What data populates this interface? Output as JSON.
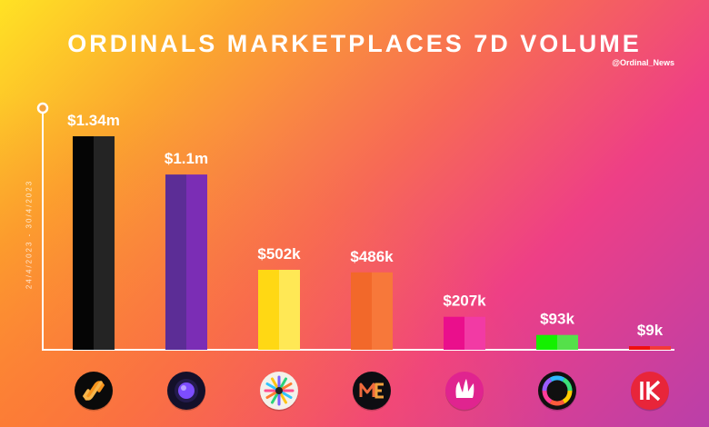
{
  "title": "ORDINALS MARKETPLACES 7D VOLUME",
  "handle": "@Ordinal_News",
  "date_range": "24/4/2023 - 30/4/2023",
  "chart_data": {
    "type": "bar",
    "categories": [
      "",
      "",
      "",
      "",
      "",
      "",
      ""
    ],
    "values": [
      1340000,
      1100000,
      502000,
      486000,
      207000,
      93000,
      9000
    ],
    "data_labels": [
      "$1.34m",
      "$1.1m",
      "$502k",
      "$486k",
      "$207k",
      "$93k",
      "$9k"
    ],
    "bar_colors": [
      [
        "#050505",
        "#242424"
      ],
      [
        "#5c2d96",
        "#7b2db5"
      ],
      [
        "#ffd814",
        "#ffe855"
      ],
      [
        "#f2682a",
        "#f7783a"
      ],
      [
        "#ea0f8c",
        "#f23aa4"
      ],
      [
        "#14f000",
        "#55e04a"
      ],
      [
        "#f01010",
        "#f33a3a"
      ]
    ],
    "icons": [
      "chain-logo-icon",
      "orb-logo-icon",
      "snowflake-logo-icon",
      "me-logo-icon",
      "claw-logo-icon",
      "ring-logo-icon",
      "k-logo-icon"
    ],
    "ylim": [
      0,
      1400000
    ],
    "xlabel": "",
    "ylabel": "",
    "grid": false,
    "legend": "none"
  }
}
